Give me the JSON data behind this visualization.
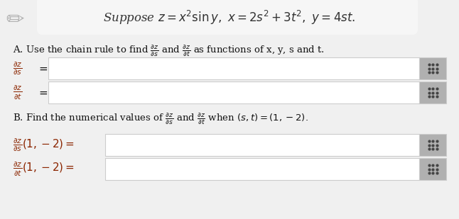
{
  "bg_color": "#f0f0f0",
  "content_bg": "#f5f5f5",
  "white": "#ffffff",
  "gray_icon": "#b0b0b0",
  "dark_red": "#8B2500",
  "black": "#111111",
  "title_color": "#333333",
  "fig_width": 6.46,
  "fig_height": 3.09,
  "dpi": 100,
  "title": "Suppose $z = x^2 \\sin y,\\ x = 2s^2 + 3t^2,\\ y = 4st.$",
  "line_A": "A. Use the chain rule to find $\\frac{\\partial z}{\\partial s}$ and $\\frac{\\partial z}{\\partial t}$ as functions of x, y, s and t.",
  "line_B": "B. Find the numerical values of $\\frac{\\partial z}{\\partial s}$ and $\\frac{\\partial z}{\\partial t}$ when $(s,t) = (1,-2).$"
}
